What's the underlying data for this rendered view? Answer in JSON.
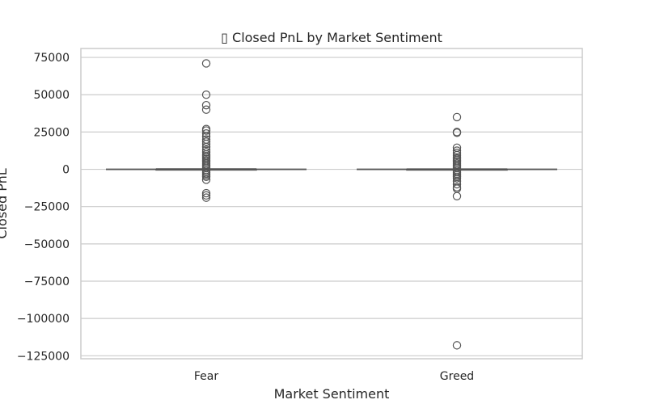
{
  "chart_data": {
    "type": "box",
    "title": "▯ Closed PnL by Market Sentiment",
    "xlabel": "Market Sentiment",
    "ylabel": "Closed PnL",
    "categories": [
      "Fear",
      "Greed"
    ],
    "ylim": [
      -127000,
      81000
    ],
    "yticks": [
      75000,
      50000,
      25000,
      0,
      -25000,
      -50000,
      -75000,
      -100000,
      -125000
    ],
    "ytick_labels": [
      "75000",
      "50000",
      "25000",
      "0",
      "−25000",
      "−50000",
      "−75000",
      "−100000",
      "−125000"
    ],
    "grid": true,
    "box_color": "#555555",
    "series": [
      {
        "category": "Fear",
        "q1": -50,
        "median": 0,
        "q3": 80,
        "whisker_low": -200,
        "whisker_high": 300,
        "outliers": [
          71000,
          50000,
          43000,
          40000,
          27000,
          26000,
          24000,
          22000,
          20000,
          18500,
          17000,
          15000,
          13000,
          11500,
          10000,
          9000,
          8000,
          7000,
          6000,
          5000,
          4000,
          3000,
          2000,
          1000,
          -1000,
          -2000,
          -3000,
          -4000,
          -5000,
          -7000,
          -16000,
          -17500,
          -19000
        ]
      },
      {
        "category": "Greed",
        "q1": -40,
        "median": 0,
        "q3": 60,
        "whisker_low": -150,
        "whisker_high": 250,
        "outliers": [
          35000,
          25000,
          24500,
          14500,
          12500,
          11000,
          9500,
          8000,
          7000,
          6000,
          5000,
          4000,
          3000,
          2000,
          1000,
          -1000,
          -2000,
          -3000,
          -4000,
          -5000,
          -6000,
          -8000,
          -10000,
          -12000,
          -13000,
          -18000,
          -118000
        ]
      }
    ]
  }
}
